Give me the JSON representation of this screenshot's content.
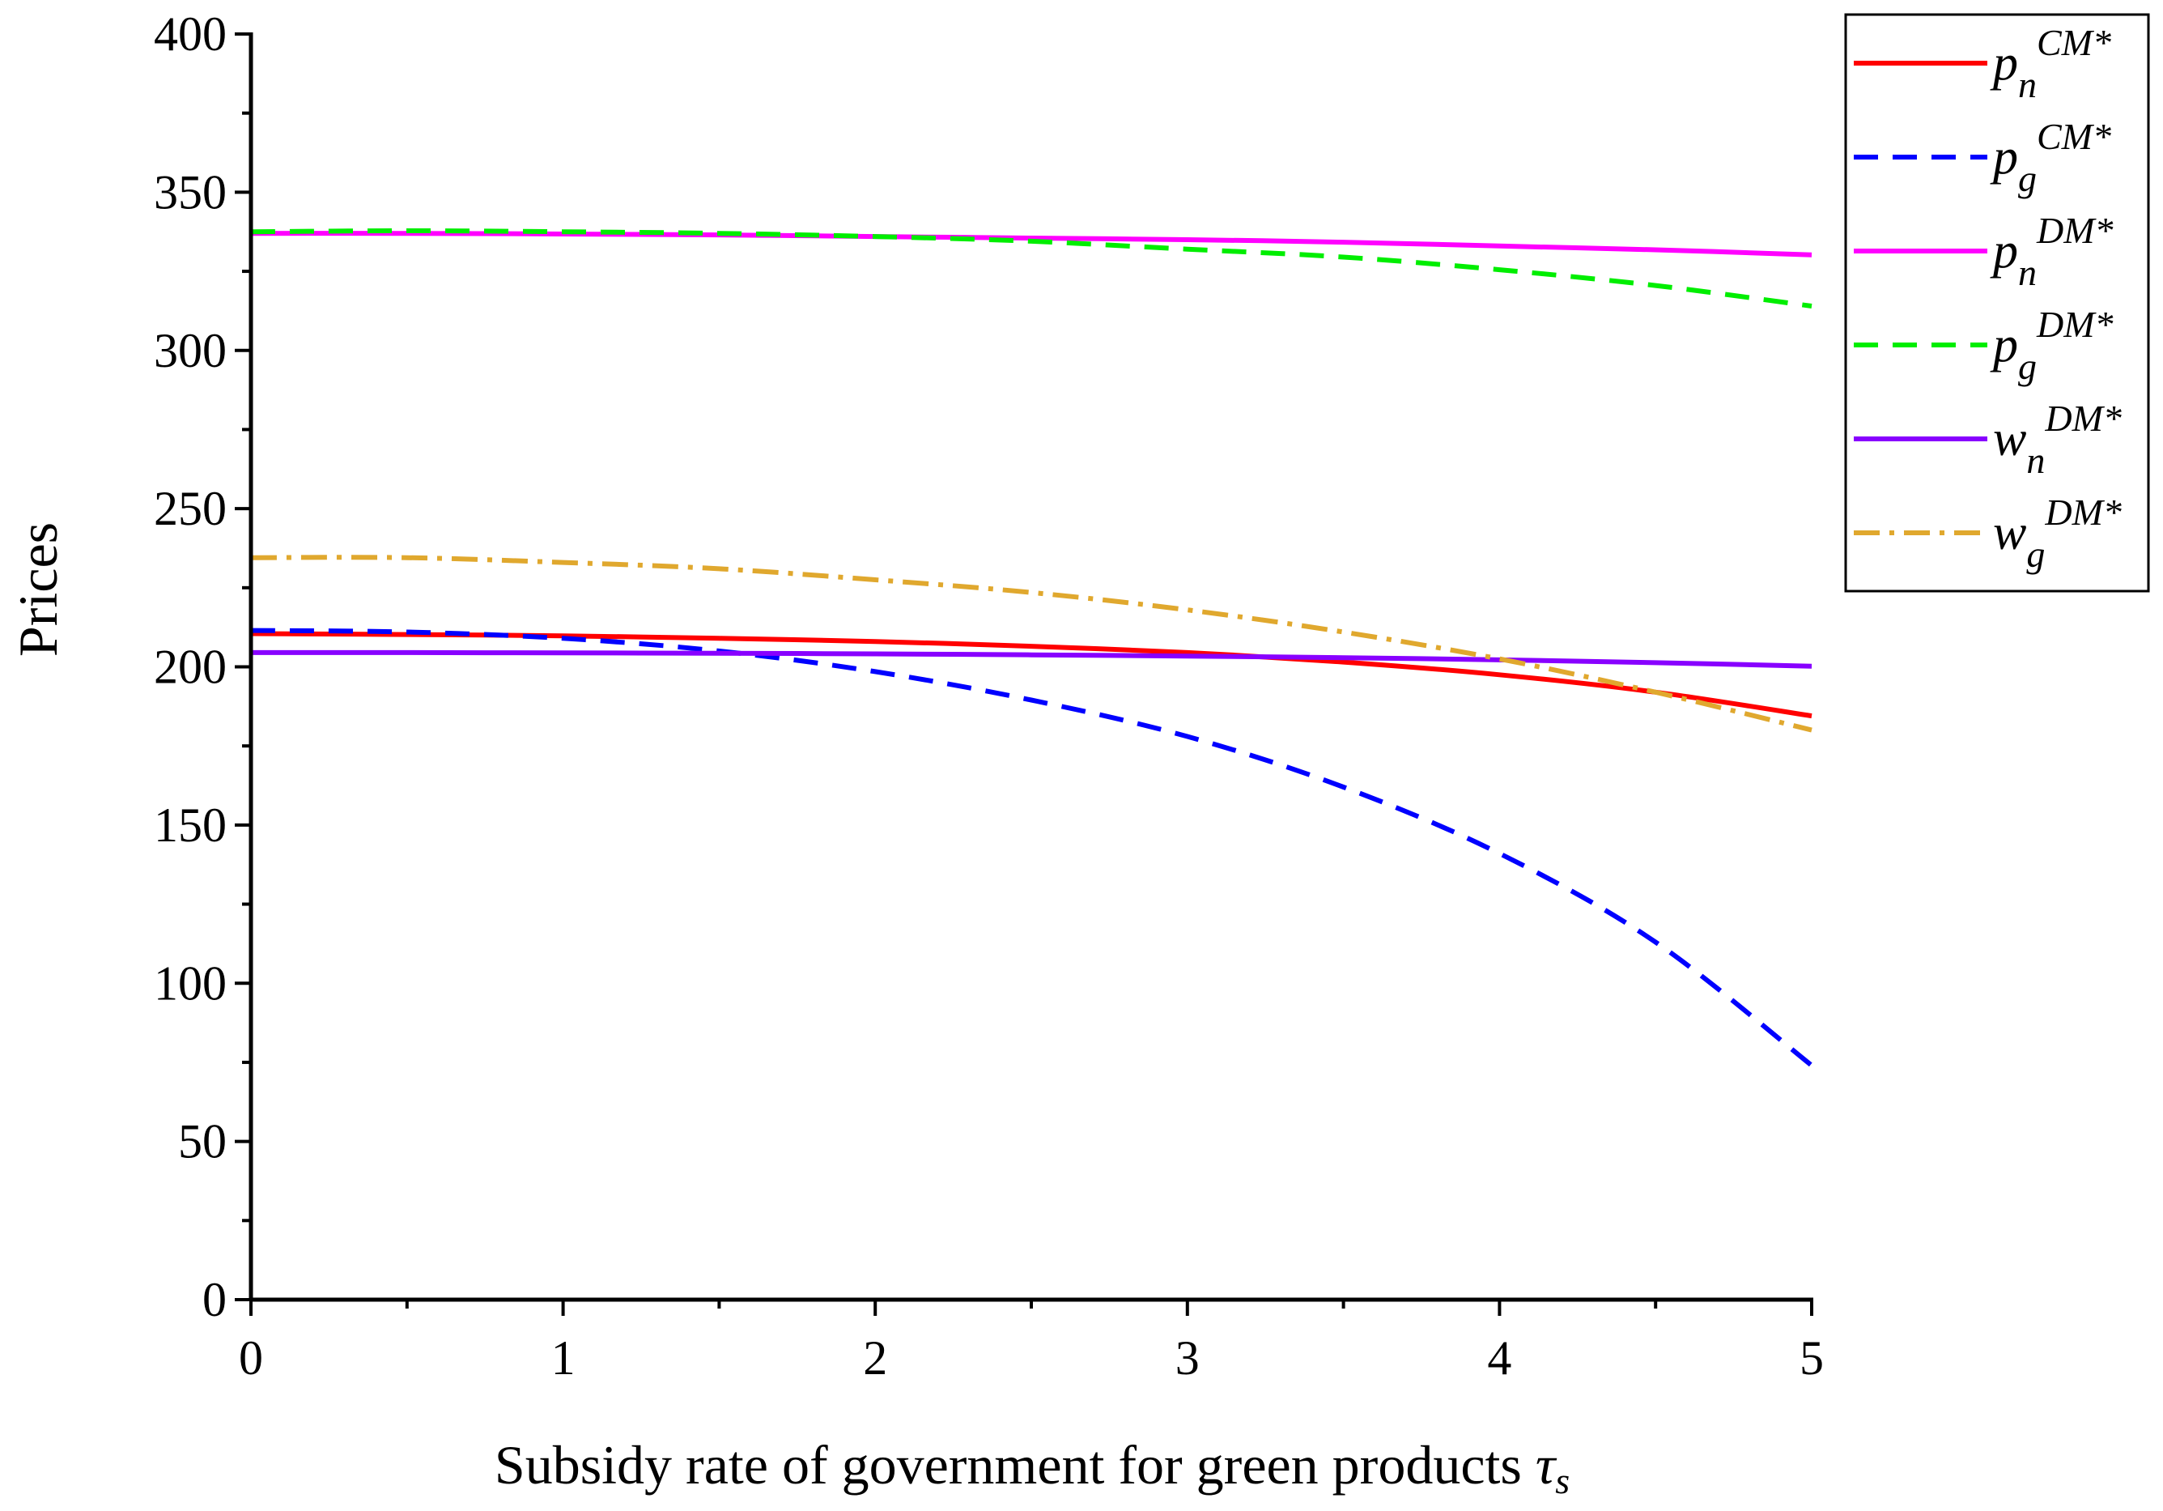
{
  "chart_data": {
    "type": "line",
    "title": "",
    "xlabel": "Subsidy rate of government for green products",
    "xlabel_symbol": "τ",
    "xlabel_symbol_sub": "s",
    "ylabel": "Prices",
    "xlim": [
      0,
      5
    ],
    "ylim": [
      0,
      400
    ],
    "xticks": [
      "0",
      "1",
      "2",
      "3",
      "4",
      "5"
    ],
    "yticks": [
      "0",
      "50",
      "100",
      "150",
      "200",
      "250",
      "300",
      "350",
      "400"
    ],
    "x": [
      0,
      0.5,
      1,
      1.5,
      2,
      2.5,
      3,
      3.5,
      4,
      4.5,
      5
    ],
    "series": [
      {
        "name": "p_n^CM*",
        "base": "p",
        "sub": "n",
        "sup": "CM*",
        "color": "#ff0000",
        "dash": "solid",
        "values": [
          210.5,
          210.2,
          209.8,
          209.0,
          208.0,
          206.5,
          204.5,
          201.5,
          197.5,
          192.0,
          184.5
        ]
      },
      {
        "name": "p_g^CM*",
        "base": "p",
        "sub": "g",
        "sup": "CM*",
        "color": "#0000ff",
        "dash": "dash",
        "values": [
          211.5,
          211.0,
          209.0,
          205.0,
          198.5,
          189.5,
          178.0,
          162.0,
          141.0,
          113.0,
          74.0
        ]
      },
      {
        "name": "p_n^DM*",
        "base": "p",
        "sub": "n",
        "sup": "DM*",
        "color": "#ff00ff",
        "dash": "solid",
        "values": [
          337.0,
          337.0,
          336.8,
          336.5,
          336.0,
          335.5,
          335.0,
          334.2,
          333.0,
          331.8,
          330.2
        ]
      },
      {
        "name": "p_g^DM*",
        "base": "p",
        "sub": "g",
        "sup": "DM*",
        "color": "#00ee00",
        "dash": "dash",
        "values": [
          337.5,
          337.8,
          337.5,
          337.0,
          336.0,
          334.5,
          332.0,
          329.5,
          325.5,
          320.5,
          314.0
        ]
      },
      {
        "name": "w_n^DM*",
        "base": "w",
        "sub": "n",
        "sup": "DM*",
        "color": "#8800ff",
        "dash": "solid",
        "values": [
          204.5,
          204.5,
          204.4,
          204.3,
          204.1,
          203.8,
          203.4,
          202.9,
          202.2,
          201.3,
          200.2
        ]
      },
      {
        "name": "w_g^DM*",
        "base": "w",
        "sub": "g",
        "sup": "DM*",
        "color": "#e0a82e",
        "dash": "dashdot",
        "values": [
          234.5,
          234.5,
          233.0,
          231.0,
          227.5,
          223.5,
          218.0,
          211.0,
          202.5,
          192.0,
          180.0
        ]
      }
    ],
    "legend_position": "top-right outside"
  }
}
